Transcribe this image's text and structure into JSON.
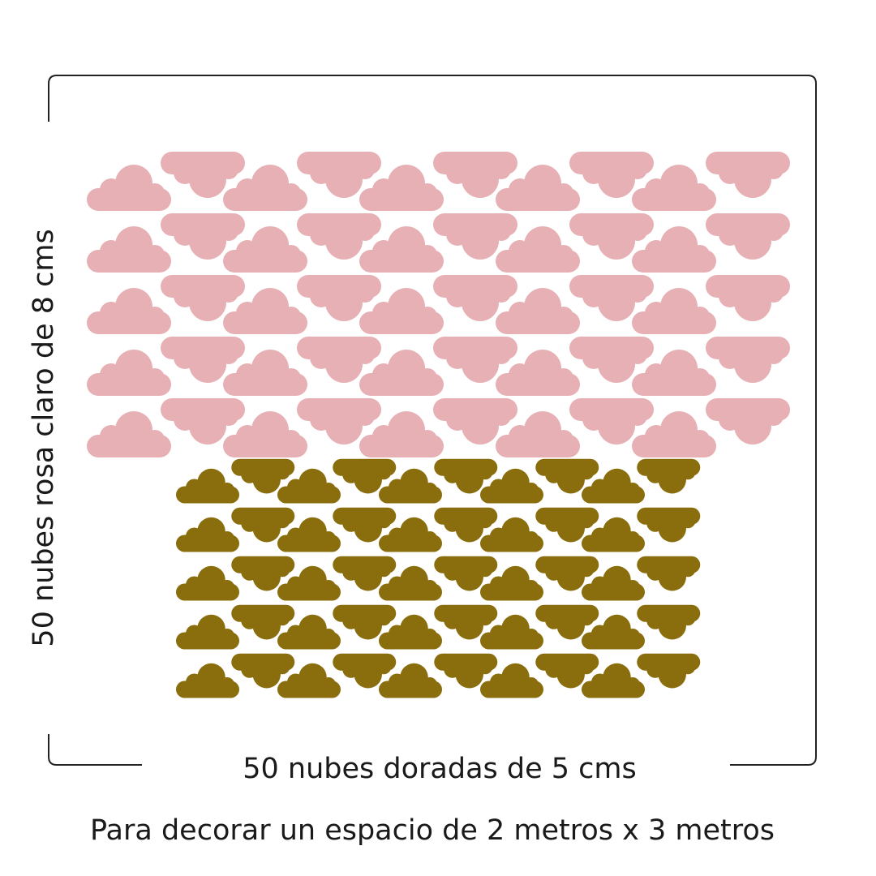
{
  "side_label": "50  nubes rosa claro de 8 cms",
  "bottom_label": "50 nubes doradas de 5 cms",
  "caption": "Para decorar un espacio de 2 metros x 3 metros"
}
